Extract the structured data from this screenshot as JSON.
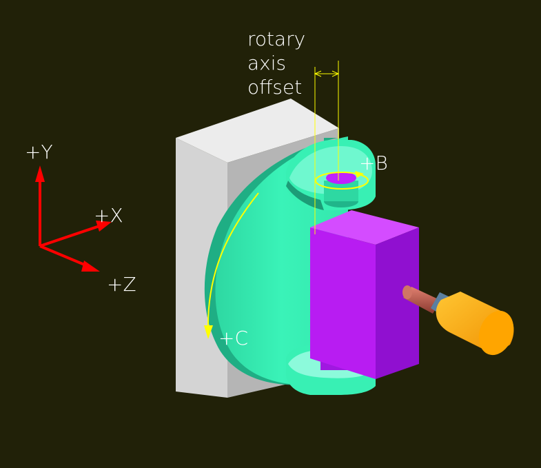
{
  "colors": {
    "background": "#212108",
    "base_block_face": "#d3d3d3",
    "base_block_side": "#b2b2b2",
    "base_block_top": "#eaeaea",
    "table": "#38f0b4",
    "table_light": "#7dffd8",
    "table_dark": "#20b58a",
    "head": "#c020ff",
    "head_dark": "#8800c8",
    "head_light": "#e05cff",
    "spindle": "#c06050",
    "tool": "#ffb000",
    "tool_dark": "#d88000",
    "axis_arrows": "#ff0000",
    "annotation": "#ffff00",
    "text": "#ffffff"
  },
  "labels": {
    "offset_line1": "rotary",
    "offset_line2": "axis",
    "offset_line3": "offset",
    "axis_y": "+Y",
    "axis_x": "+X",
    "axis_z": "+Z",
    "rot_b": "+B",
    "rot_c": "+C"
  }
}
